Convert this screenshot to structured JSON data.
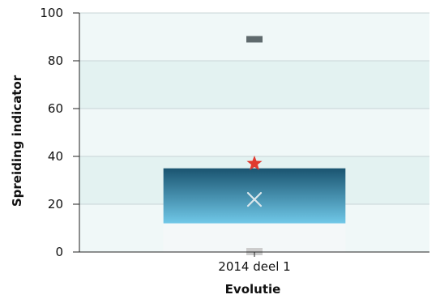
{
  "chart_data": {
    "type": "box",
    "xlabel": "Evolutie",
    "ylabel": "Spreiding indicator",
    "ylim": [
      0,
      100
    ],
    "yticks": [
      0,
      20,
      40,
      60,
      80,
      100
    ],
    "grid": "horizontal bands",
    "categories": [
      "2014 deel 1"
    ],
    "series": [
      {
        "box_low": 12,
        "box_high": 35,
        "mean": 22,
        "max_marker": 89,
        "min_marker": 0,
        "star_value": 37
      }
    ],
    "colors": {
      "box_top": "#1a5470",
      "box_bottom": "#70c8e8",
      "star": "#e03a2f",
      "max_marker": "#5f6a6d",
      "min_marker": "#cccccc",
      "band_light": "#f0f8f8",
      "band_dark": "#e3f2f1",
      "mean_marker": "#dbe7ec"
    }
  }
}
